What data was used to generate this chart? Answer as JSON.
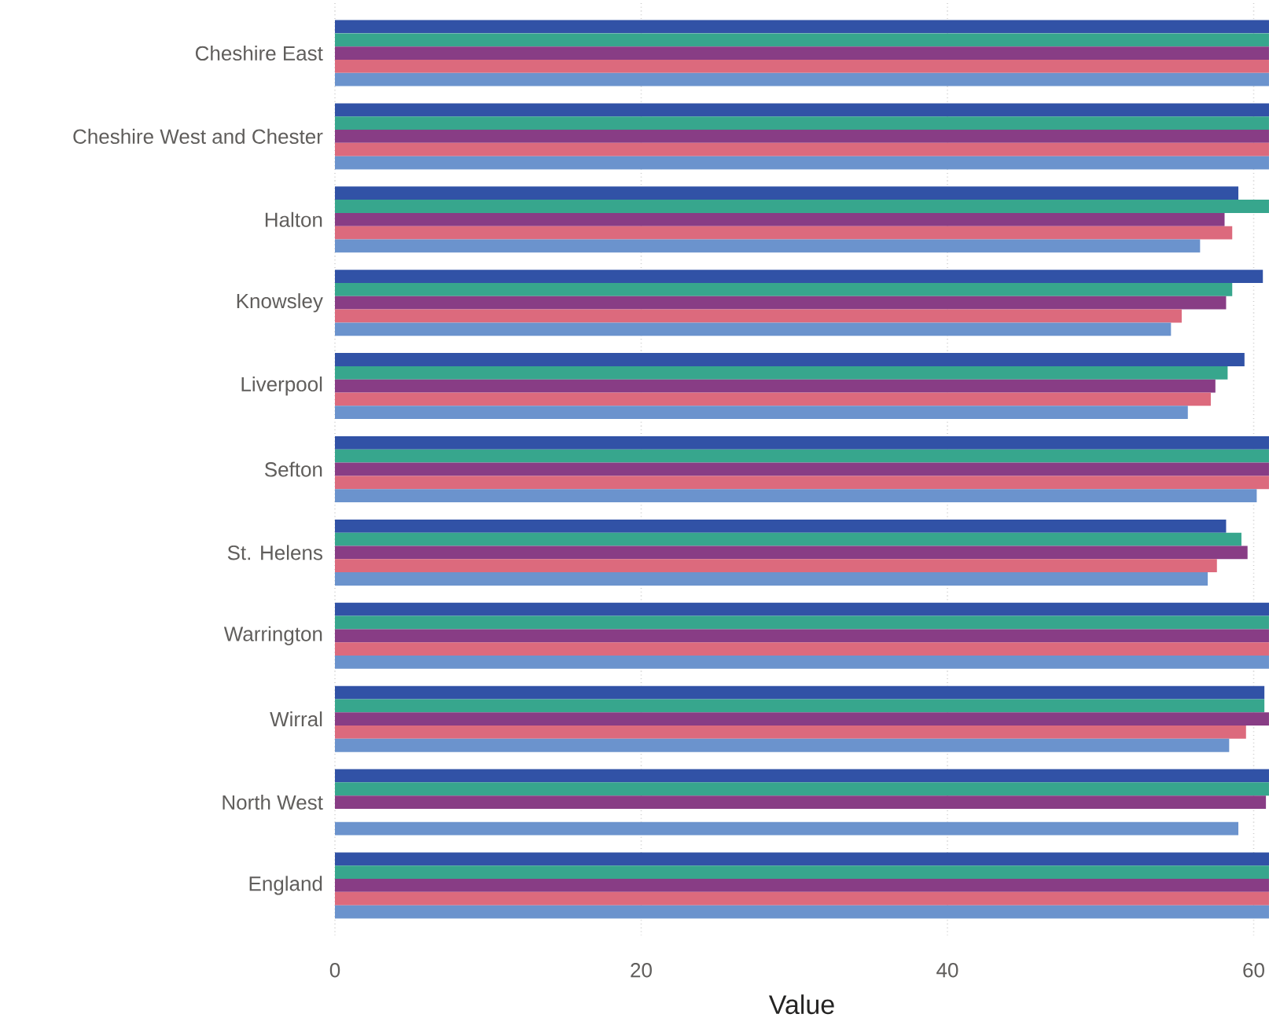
{
  "chart_data": {
    "type": "bar",
    "orientation": "horizontal",
    "xlabel": "Value",
    "grid": "x",
    "categories": [
      "Cheshire East",
      "Cheshire West and Chester",
      "Halton",
      "Knowsley",
      "Liverpool",
      "Sefton",
      "St. Helens",
      "Warrington",
      "Wirral",
      "North West",
      "England"
    ],
    "xlim": [
      0,
      61
    ],
    "xticks": [
      0,
      20,
      40,
      60
    ],
    "series": [
      {
        "color": "#3152a6",
        "values": [
          61,
          61,
          59.0,
          60.6,
          59.4,
          61,
          58.2,
          61,
          60.7,
          61,
          61
        ]
      },
      {
        "color": "#37a68d",
        "values": [
          61,
          61,
          61,
          58.6,
          58.3,
          61,
          59.2,
          61,
          60.7,
          61,
          61
        ]
      },
      {
        "color": "#883d85",
        "values": [
          61,
          61,
          58.1,
          58.2,
          57.5,
          61,
          59.6,
          61,
          61,
          60.8,
          61
        ]
      },
      {
        "color": "#dc6a7d",
        "values": [
          61,
          61,
          58.6,
          55.3,
          57.2,
          61,
          57.6,
          61,
          59.5,
          null,
          61
        ]
      },
      {
        "color": "#6b93cd",
        "values": [
          61,
          61,
          56.5,
          54.6,
          55.7,
          60.2,
          57.0,
          61,
          58.4,
          59.0,
          61
        ]
      }
    ]
  }
}
